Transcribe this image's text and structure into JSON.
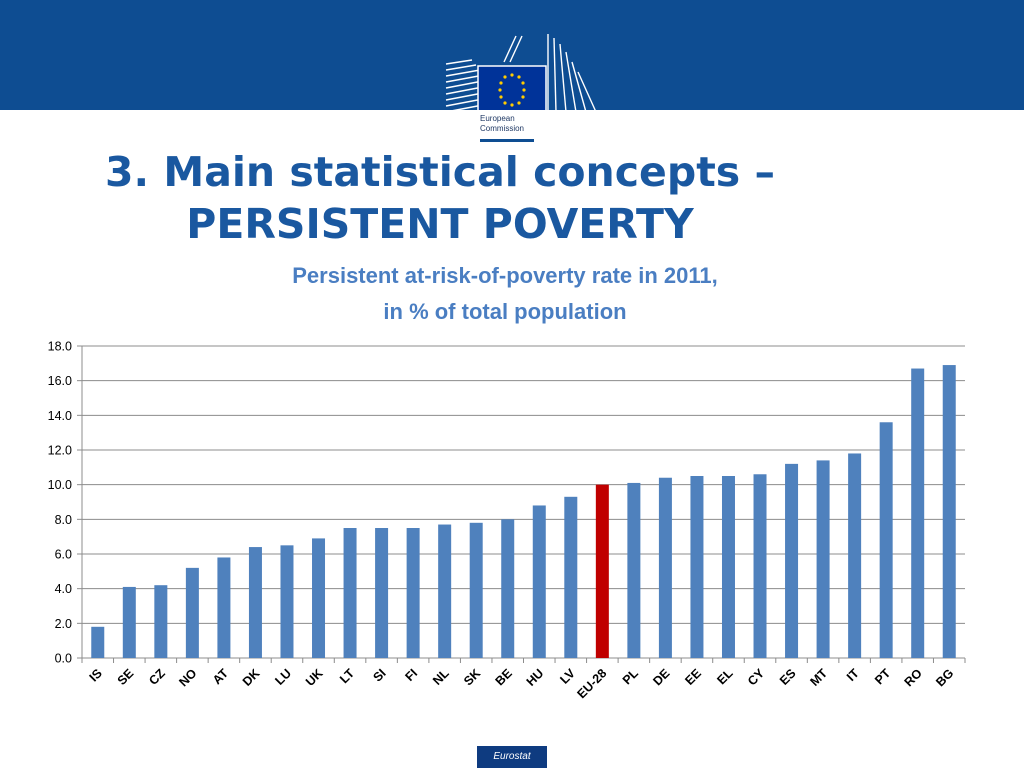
{
  "header": {
    "logo_lines": [
      "European",
      "Commission"
    ]
  },
  "slide": {
    "title_line1": "3. Main statistical concepts –",
    "title_line2": "PERSISTENT POVERTY"
  },
  "colors": {
    "banner": "#0e4d92",
    "title": "#1a58a0",
    "chart_title": "#4a7ec2",
    "bar_default": "#4f81bd",
    "bar_highlight": "#c00000"
  },
  "chart_data": {
    "type": "bar",
    "title_line1": "Persistent at-risk-of-poverty rate in 2011,",
    "title_line2": "in % of total population",
    "categories": [
      "IS",
      "SE",
      "CZ",
      "NO",
      "AT",
      "DK",
      "LU",
      "UK",
      "LT",
      "SI",
      "FI",
      "NL",
      "SK",
      "BE",
      "HU",
      "LV",
      "EU-28",
      "PL",
      "DE",
      "EE",
      "EL",
      "CY",
      "ES",
      "MT",
      "IT",
      "PT",
      "RO",
      "BG"
    ],
    "values": [
      1.8,
      4.1,
      4.2,
      5.2,
      5.8,
      6.4,
      6.5,
      6.9,
      7.5,
      7.5,
      7.5,
      7.7,
      7.8,
      8.0,
      8.8,
      9.3,
      10.0,
      10.1,
      10.4,
      10.5,
      10.5,
      10.6,
      11.2,
      11.4,
      11.8,
      13.6,
      16.7,
      16.9
    ],
    "highlight_category": "EU-28",
    "ylim": [
      0,
      18
    ],
    "yticks": [
      "0.0",
      "2.0",
      "4.0",
      "6.0",
      "8.0",
      "10.0",
      "12.0",
      "14.0",
      "16.0",
      "18.0"
    ],
    "xlabel": "",
    "ylabel": "",
    "grid": true,
    "legend": "none"
  },
  "footer": {
    "source": "Eurostat"
  }
}
